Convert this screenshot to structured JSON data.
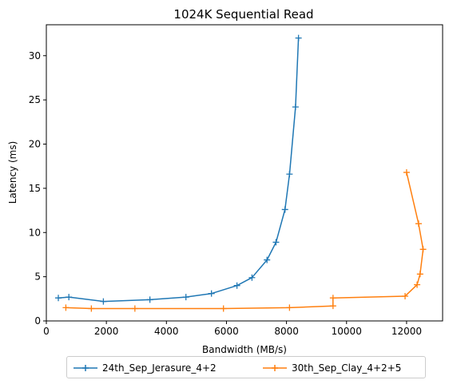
{
  "chart_data": {
    "type": "line",
    "title": "1024K  Sequential Read",
    "xlabel": "Bandwidth (MB/s)",
    "ylabel": "Latency (ms)",
    "xlim": [
      0,
      13200
    ],
    "ylim": [
      0,
      33.5
    ],
    "xticks": [
      0,
      2000,
      4000,
      6000,
      8000,
      10000,
      12000
    ],
    "yticks": [
      0,
      5,
      10,
      15,
      20,
      25,
      30
    ],
    "xtick_labels": [
      "0",
      "2000",
      "4000",
      "6000",
      "8000",
      "10000",
      "12000"
    ],
    "ytick_labels": [
      "0",
      "5",
      "10",
      "15",
      "20",
      "25",
      "30"
    ],
    "grid": false,
    "legend_position": "bottom-center",
    "series": [
      {
        "name": "24th_Sep_Jerasure_4+2",
        "color": "#1f77b4",
        "marker": "plus",
        "x": [
          400,
          750,
          1900,
          3450,
          4650,
          5500,
          6350,
          6850,
          7350,
          7650,
          7950,
          8100,
          8300,
          8400
        ],
        "y": [
          2.6,
          2.7,
          2.2,
          2.4,
          2.7,
          3.1,
          4.0,
          4.9,
          6.9,
          8.9,
          12.6,
          16.6,
          24.2,
          32.0
        ]
      },
      {
        "name": "30th_Sep_Clay_4+2+5",
        "color": "#ff7f0e",
        "marker": "plus",
        "x": [
          650,
          1500,
          2950,
          5900,
          8100,
          9550,
          9550,
          11950,
          12350,
          12450,
          12550,
          12400,
          12000
        ],
        "y": [
          1.5,
          1.4,
          1.4,
          1.4,
          1.5,
          1.7,
          2.6,
          2.8,
          4.1,
          5.3,
          8.1,
          11.0,
          16.8
        ]
      }
    ]
  }
}
